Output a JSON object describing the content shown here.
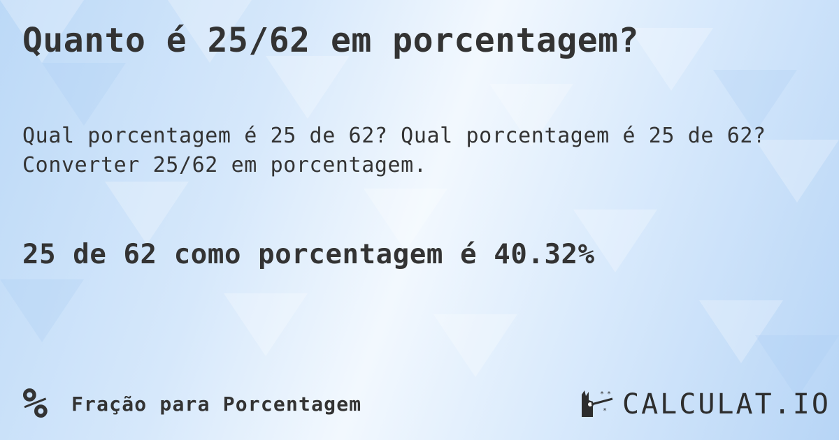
{
  "title": "Quanto é 25/62 em porcentagem?",
  "description": {
    "line1": "Qual porcentagem é 25 de 62? Qual porcentagem é 25 de 62?",
    "line2": "Converter 25/62 em porcentagem."
  },
  "result": "25 de 62 como porcentagem é 40.32%",
  "footer": {
    "icon": "percent-icon",
    "symbol": "%",
    "label": "Fração para Porcentagem"
  },
  "logo": {
    "icon": "magic-hand-icon",
    "text": "CALCULAT.IO"
  },
  "colors": {
    "text": "#333333",
    "background": "#d6e8fb"
  }
}
